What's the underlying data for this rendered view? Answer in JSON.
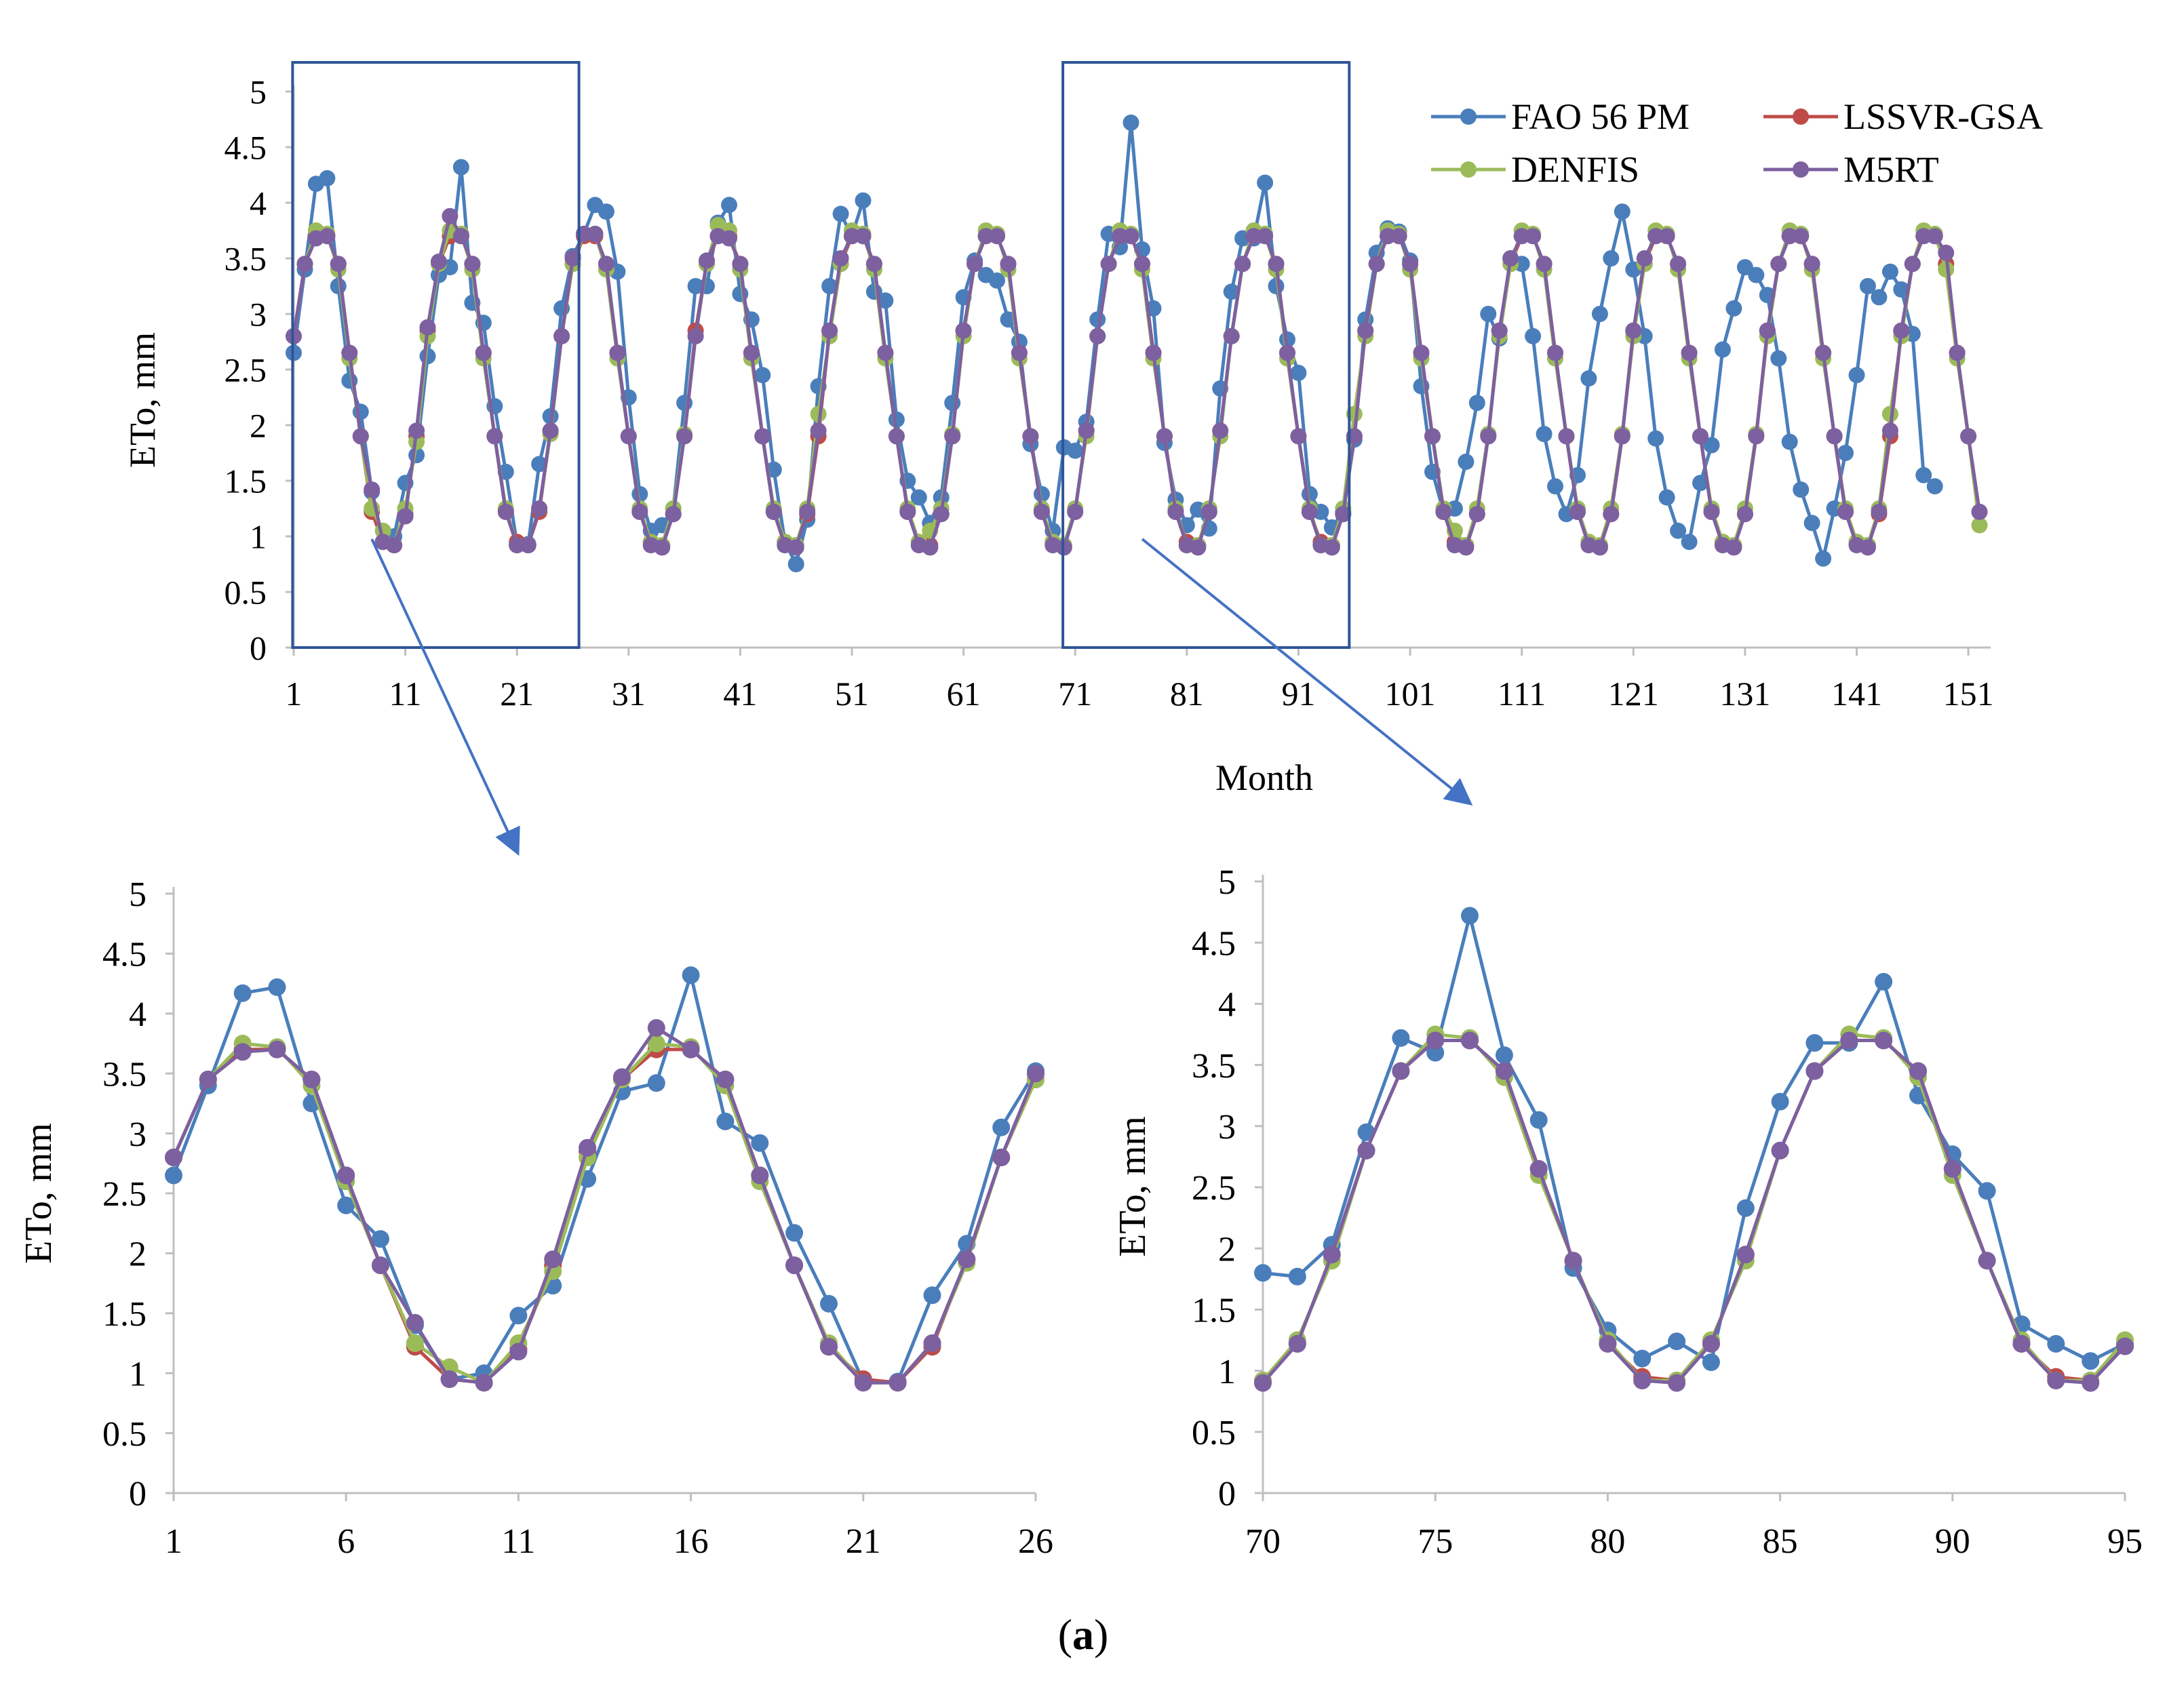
{
  "caption": {
    "open": "(",
    "letter": "a",
    "close": ")"
  },
  "colors": {
    "fao": "#4a7ebb",
    "lssvr": "#be4b48",
    "denfis": "#9bbb59",
    "m5rt": "#7d60a0",
    "axis": "#bfbfbf",
    "box": "#2f5597"
  },
  "chart_data": [
    {
      "id": "main",
      "type": "line",
      "title": "",
      "xlabel": "Month",
      "ylabel": "ETo, mm",
      "xlim": [
        1,
        153
      ],
      "ylim": [
        0,
        5
      ],
      "x_ticks": [
        1,
        11,
        21,
        31,
        41,
        51,
        61,
        71,
        81,
        91,
        101,
        111,
        121,
        131,
        141,
        151
      ],
      "y_ticks": [
        "0",
        "0.5",
        "1",
        "1.5",
        "2",
        "2.5",
        "3",
        "3.5",
        "4",
        "4.5",
        "5"
      ],
      "legend": [
        "FAO 56 PM",
        "LSSVR-GSA",
        "DENFIS",
        "M5RT"
      ],
      "legend_position": "top-right",
      "zoom_ranges": [
        [
          1,
          26
        ],
        [
          70,
          95
        ]
      ],
      "x_range": [
        1,
        152
      ],
      "series": [
        {
          "name": "FAO 56 PM",
          "values": [
            2.65,
            3.4,
            4.17,
            4.22,
            3.25,
            2.4,
            2.12,
            1.4,
            0.95,
            1.0,
            1.48,
            1.73,
            2.62,
            3.35,
            3.42,
            4.32,
            3.1,
            2.92,
            2.17,
            1.58,
            0.93,
            0.93,
            1.65,
            2.08,
            3.05,
            3.52,
            3.72,
            3.98,
            3.92,
            3.38,
            2.25,
            1.38,
            1.05,
            1.1,
            1.25,
            2.2,
            3.25,
            3.25,
            3.82,
            3.98,
            3.18,
            2.95,
            2.45,
            1.6,
            0.95,
            0.75,
            1.15,
            2.35,
            3.25,
            3.9,
            3.7,
            4.02,
            3.2,
            3.12,
            2.05,
            1.5,
            1.35,
            1.12,
            1.35,
            2.2,
            3.15,
            3.48,
            3.35,
            3.3,
            2.95,
            2.75,
            1.83,
            1.38,
            1.05,
            1.8,
            1.77,
            2.03,
            2.95,
            3.72,
            3.6,
            4.72,
            3.58,
            3.05,
            1.84,
            1.33,
            1.1,
            1.24,
            1.07,
            2.33,
            3.2,
            3.68,
            3.68,
            4.18,
            3.25,
            2.77,
            2.47,
            1.38,
            1.22,
            1.08,
            1.22,
            1.87,
            2.95,
            3.55,
            3.77,
            3.74,
            3.48,
            2.35,
            1.58,
            1.22,
            1.25,
            1.67,
            2.2,
            3.0,
            2.78,
            3.5,
            3.45,
            2.8,
            1.92,
            1.45,
            1.2,
            1.55,
            2.42,
            3.0,
            3.5,
            3.92,
            3.4,
            2.8,
            1.88,
            1.35,
            1.05,
            0.95,
            1.48,
            1.82,
            2.68,
            3.05,
            3.42,
            3.35,
            3.17,
            2.6,
            1.85,
            1.42,
            1.12,
            0.8,
            1.25,
            1.75,
            2.45,
            3.25,
            3.15,
            3.38,
            3.22,
            2.82,
            1.55,
            1.45
          ]
        },
        {
          "name": "LSSVR-GSA",
          "values": [
            2.8,
            3.45,
            3.7,
            3.7,
            3.45,
            2.65,
            1.9,
            1.22,
            0.95,
            0.92,
            1.2,
            1.9,
            2.85,
            3.45,
            3.7,
            3.7,
            3.45,
            2.65,
            1.9,
            1.22,
            0.95,
            0.92,
            1.22,
            1.95,
            2.8,
            3.45,
            3.7,
            3.7,
            3.45,
            2.65,
            1.9,
            1.22,
            0.95,
            0.92,
            1.2,
            1.9,
            2.85,
            3.45,
            3.7,
            3.7,
            3.45,
            2.65,
            1.9,
            1.22,
            0.95,
            0.92,
            1.2,
            1.9,
            2.85,
            3.45,
            3.7,
            3.7,
            3.45,
            2.65,
            1.9,
            1.22,
            0.95,
            0.92,
            1.2,
            1.9,
            2.85,
            3.45,
            3.7,
            3.7,
            3.45,
            2.65,
            1.9,
            1.22,
            0.95,
            0.92,
            1.22,
            1.95,
            2.8,
            3.45,
            3.7,
            3.7,
            3.45,
            2.65,
            1.9,
            1.22,
            0.95,
            0.92,
            1.22,
            1.95,
            2.8,
            3.45,
            3.7,
            3.7,
            3.45,
            2.65,
            1.9,
            1.22,
            0.95,
            0.92,
            1.2,
            1.9,
            2.85,
            3.45,
            3.7,
            3.7,
            3.45,
            2.65,
            1.9,
            1.22,
            0.95,
            0.92,
            1.2,
            1.9,
            2.85,
            3.45,
            3.7,
            3.7,
            3.45,
            2.65,
            1.9,
            1.22,
            0.95,
            0.92,
            1.2,
            1.9,
            2.85,
            3.45,
            3.7,
            3.7,
            3.45,
            2.65,
            1.9,
            1.22,
            0.95,
            0.92,
            1.2,
            1.9,
            2.85,
            3.45,
            3.7,
            3.7,
            3.45,
            2.65,
            1.9,
            1.22,
            0.95,
            0.92,
            1.2,
            1.9,
            2.85,
            3.45,
            3.7,
            3.7,
            3.45,
            2.65,
            1.9,
            1.22
          ]
        },
        {
          "name": "DENFIS",
          "values": [
            2.8,
            3.45,
            3.75,
            3.72,
            3.4,
            2.6,
            1.9,
            1.25,
            1.05,
            0.92,
            1.25,
            1.85,
            2.8,
            3.45,
            3.75,
            3.72,
            3.4,
            2.6,
            1.9,
            1.25,
            0.92,
            0.92,
            1.25,
            1.92,
            2.8,
            3.45,
            3.72,
            3.72,
            3.4,
            2.6,
            1.9,
            1.25,
            0.95,
            0.92,
            1.25,
            1.92,
            2.8,
            3.45,
            3.8,
            3.75,
            3.4,
            2.6,
            1.9,
            1.25,
            0.95,
            0.92,
            1.25,
            2.1,
            2.8,
            3.45,
            3.75,
            3.72,
            3.4,
            2.6,
            1.9,
            1.25,
            0.95,
            1.05,
            1.25,
            1.92,
            2.8,
            3.45,
            3.75,
            3.72,
            3.4,
            2.6,
            1.9,
            1.25,
            0.95,
            0.92,
            1.25,
            1.9,
            2.8,
            3.45,
            3.75,
            3.72,
            3.4,
            2.6,
            1.9,
            1.25,
            0.92,
            0.92,
            1.25,
            1.9,
            2.8,
            3.45,
            3.75,
            3.72,
            3.4,
            2.6,
            1.9,
            1.25,
            0.92,
            0.92,
            1.25,
            2.1,
            2.8,
            3.45,
            3.75,
            3.72,
            3.4,
            2.6,
            1.9,
            1.25,
            1.05,
            0.92,
            1.25,
            1.92,
            2.8,
            3.45,
            3.75,
            3.72,
            3.4,
            2.6,
            1.9,
            1.25,
            0.95,
            0.92,
            1.25,
            1.92,
            2.8,
            3.45,
            3.75,
            3.72,
            3.4,
            2.6,
            1.9,
            1.25,
            0.95,
            0.92,
            1.25,
            1.92,
            2.8,
            3.45,
            3.75,
            3.72,
            3.4,
            2.6,
            1.9,
            1.25,
            0.95,
            0.92,
            1.25,
            2.1,
            2.8,
            3.45,
            3.75,
            3.72,
            3.4,
            2.6,
            1.9,
            1.1
          ]
        },
        {
          "name": "M5RT",
          "values": [
            2.8,
            3.45,
            3.68,
            3.7,
            3.45,
            2.65,
            1.9,
            1.42,
            0.95,
            0.92,
            1.18,
            1.95,
            2.88,
            3.47,
            3.88,
            3.7,
            3.45,
            2.65,
            1.9,
            1.22,
            0.92,
            0.92,
            1.25,
            1.95,
            2.8,
            3.5,
            3.72,
            3.72,
            3.45,
            2.65,
            1.9,
            1.22,
            0.92,
            0.9,
            1.2,
            1.9,
            2.8,
            3.48,
            3.7,
            3.68,
            3.45,
            2.65,
            1.9,
            1.22,
            0.92,
            0.9,
            1.22,
            1.95,
            2.85,
            3.5,
            3.7,
            3.7,
            3.45,
            2.65,
            1.9,
            1.22,
            0.92,
            0.9,
            1.2,
            1.9,
            2.85,
            3.45,
            3.7,
            3.7,
            3.45,
            2.65,
            1.9,
            1.22,
            0.92,
            0.9,
            1.22,
            1.95,
            2.8,
            3.45,
            3.7,
            3.7,
            3.45,
            2.65,
            1.9,
            1.22,
            0.92,
            0.9,
            1.22,
            1.95,
            2.8,
            3.45,
            3.7,
            3.7,
            3.45,
            2.65,
            1.9,
            1.22,
            0.92,
            0.9,
            1.2,
            1.9,
            2.85,
            3.45,
            3.7,
            3.7,
            3.45,
            2.65,
            1.9,
            1.22,
            0.92,
            0.9,
            1.2,
            1.9,
            2.85,
            3.5,
            3.7,
            3.7,
            3.45,
            2.65,
            1.9,
            1.22,
            0.92,
            0.9,
            1.2,
            1.9,
            2.85,
            3.5,
            3.7,
            3.7,
            3.45,
            2.65,
            1.9,
            1.22,
            0.92,
            0.9,
            1.2,
            1.9,
            2.85,
            3.45,
            3.7,
            3.7,
            3.45,
            2.65,
            1.9,
            1.22,
            0.92,
            0.9,
            1.22,
            1.95,
            2.85,
            3.45,
            3.7,
            3.7,
            3.55,
            2.65,
            1.9,
            1.22
          ]
        }
      ]
    },
    {
      "id": "zoom-left",
      "type": "line",
      "title": "",
      "xlabel": "",
      "ylabel": "ETo, mm",
      "xlim": [
        1,
        26
      ],
      "ylim": [
        0,
        5
      ],
      "x_ticks": [
        1,
        6,
        11,
        16,
        21,
        26
      ],
      "y_ticks": [
        "0",
        "0.5",
        "1",
        "1.5",
        "2",
        "2.5",
        "3",
        "3.5",
        "4",
        "4.5",
        "5"
      ],
      "x_range": [
        1,
        26
      ],
      "series_from_main": true
    },
    {
      "id": "zoom-right",
      "type": "line",
      "title": "",
      "xlabel": "",
      "ylabel": "ETo, mm",
      "xlim": [
        70,
        95
      ],
      "ylim": [
        0,
        5
      ],
      "x_ticks": [
        70,
        75,
        80,
        85,
        90,
        95
      ],
      "y_ticks": [
        "0",
        "0.5",
        "1",
        "1.5",
        "2",
        "2.5",
        "3",
        "3.5",
        "4",
        "4.5",
        "5"
      ],
      "x_range": [
        70,
        95
      ],
      "series_from_main": true
    }
  ]
}
